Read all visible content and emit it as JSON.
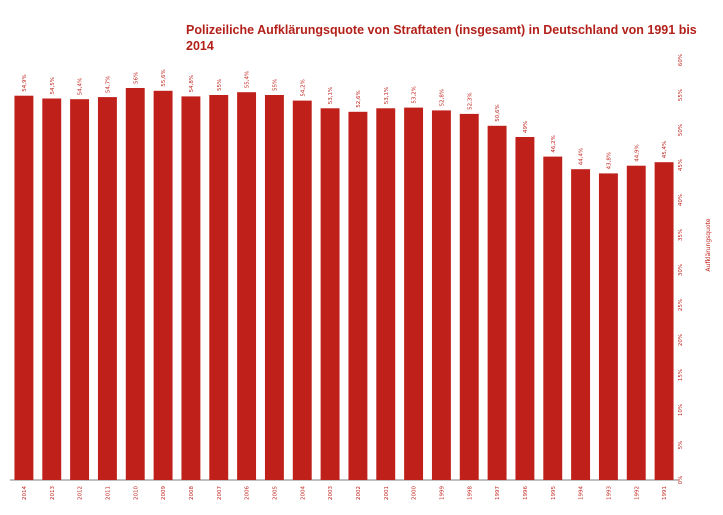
{
  "chart_data": {
    "type": "bar",
    "title": "Polizeiliche Aufklärungsquote von Straftaten (insgesamt) in Deutschland von 1991 bis 2014",
    "ylabel": "Aufklärungsquote",
    "xlabel": "",
    "ylim": [
      0,
      60
    ],
    "y_ticks": [
      "0%",
      "5%",
      "10%",
      "15%",
      "20%",
      "25%",
      "30%",
      "35%",
      "40%",
      "45%",
      "50%",
      "55%",
      "60%"
    ],
    "y_axis_side": "right",
    "bar_color": "#c0201a",
    "categories": [
      "2014",
      "2013",
      "2012",
      "2011",
      "2010",
      "2009",
      "2008",
      "2007",
      "2006",
      "2005",
      "2004",
      "2003",
      "2002",
      "2001",
      "2000",
      "1999",
      "1998",
      "1997",
      "1996",
      "1995",
      "1994",
      "1993",
      "1992",
      "1991"
    ],
    "values": [
      54.9,
      54.5,
      54.4,
      54.7,
      56,
      55.6,
      54.8,
      55,
      55.4,
      55,
      54.2,
      53.1,
      52.6,
      53.1,
      53.2,
      52.8,
      52.3,
      50.6,
      49,
      46.2,
      44.4,
      43.8,
      44.9,
      45.4
    ],
    "data_labels": [
      "54,9%",
      "54,5%",
      "54,4%",
      "54,7%",
      "56%",
      "55,6%",
      "54,8%",
      "55%",
      "55,4%",
      "55%",
      "54,2%",
      "53,1%",
      "52,6%",
      "53,1%",
      "53,2%",
      "52,8%",
      "52,3%",
      "50,6%",
      "49%",
      "46,2%",
      "44,4%",
      "43,8%",
      "44,9%",
      "45,4%"
    ]
  }
}
